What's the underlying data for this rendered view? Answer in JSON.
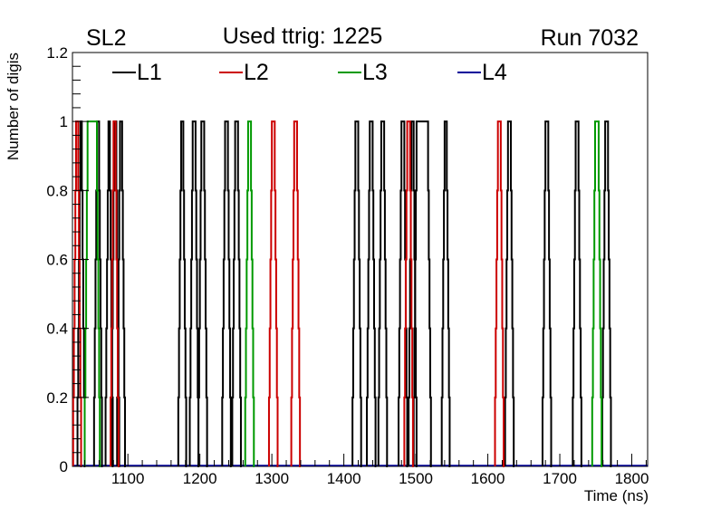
{
  "chart_data": {
    "type": "histogram-step",
    "title_left": "SL2",
    "title_center": "Used ttrig: 1225",
    "title_right": "Run 7032",
    "xlabel": "Time (ns)",
    "ylabel": "Number of digis",
    "xlim": [
      1023,
      1822
    ],
    "ylim": [
      0,
      1.2
    ],
    "x_ticks": [
      1100,
      1200,
      1300,
      1400,
      1500,
      1600,
      1700,
      1800
    ],
    "x_ticks_show": [
      true,
      true,
      true,
      true,
      true,
      true,
      true,
      true
    ],
    "y_ticks": [
      0,
      0.2,
      0.4,
      0.6,
      0.8,
      1,
      1.2
    ],
    "y_tick_labels": [
      "0",
      "0.2",
      "0.4",
      "0.6",
      "0.8",
      "1",
      "1.2"
    ],
    "x_tick_labels": [
      "1100",
      "1200",
      "1300",
      "1400",
      "1500",
      "1600",
      "1700",
      "1800"
    ],
    "grid": false,
    "legend_position": "top",
    "series": [
      {
        "name": "L1",
        "color": "#000000",
        "peaks": [
          {
            "start": 1030,
            "end": 1041
          },
          {
            "start": 1053,
            "end": 1065
          },
          {
            "start": 1069,
            "end": 1080
          },
          {
            "start": 1077,
            "end": 1089
          },
          {
            "start": 1085,
            "end": 1097
          },
          {
            "start": 1170,
            "end": 1182
          },
          {
            "start": 1186,
            "end": 1199
          },
          {
            "start": 1198,
            "end": 1211
          },
          {
            "start": 1231,
            "end": 1244
          },
          {
            "start": 1245,
            "end": 1258
          },
          {
            "start": 1412,
            "end": 1425
          },
          {
            "start": 1432,
            "end": 1445
          },
          {
            "start": 1448,
            "end": 1461
          },
          {
            "start": 1476,
            "end": 1489
          },
          {
            "start": 1490,
            "end": 1502
          },
          {
            "start": 1497,
            "end": 1522
          },
          {
            "start": 1536,
            "end": 1548
          },
          {
            "start": 1624,
            "end": 1637
          },
          {
            "start": 1676,
            "end": 1689
          },
          {
            "start": 1718,
            "end": 1731
          },
          {
            "start": 1759,
            "end": 1772
          }
        ]
      },
      {
        "name": "L2",
        "color": "#cc0000",
        "peaks": [
          {
            "start": 1024,
            "end": 1036
          },
          {
            "start": 1076,
            "end": 1088
          },
          {
            "start": 1296,
            "end": 1309
          },
          {
            "start": 1327,
            "end": 1340
          },
          {
            "start": 1484,
            "end": 1497
          },
          {
            "start": 1610,
            "end": 1623
          }
        ]
      },
      {
        "name": "L3",
        "color": "#009900",
        "peaks": [
          {
            "start": 1040,
            "end": 1062
          },
          {
            "start": 1263,
            "end": 1276
          },
          {
            "start": 1745,
            "end": 1759
          }
        ]
      },
      {
        "name": "L4",
        "color": "#000099",
        "peaks": []
      }
    ]
  }
}
